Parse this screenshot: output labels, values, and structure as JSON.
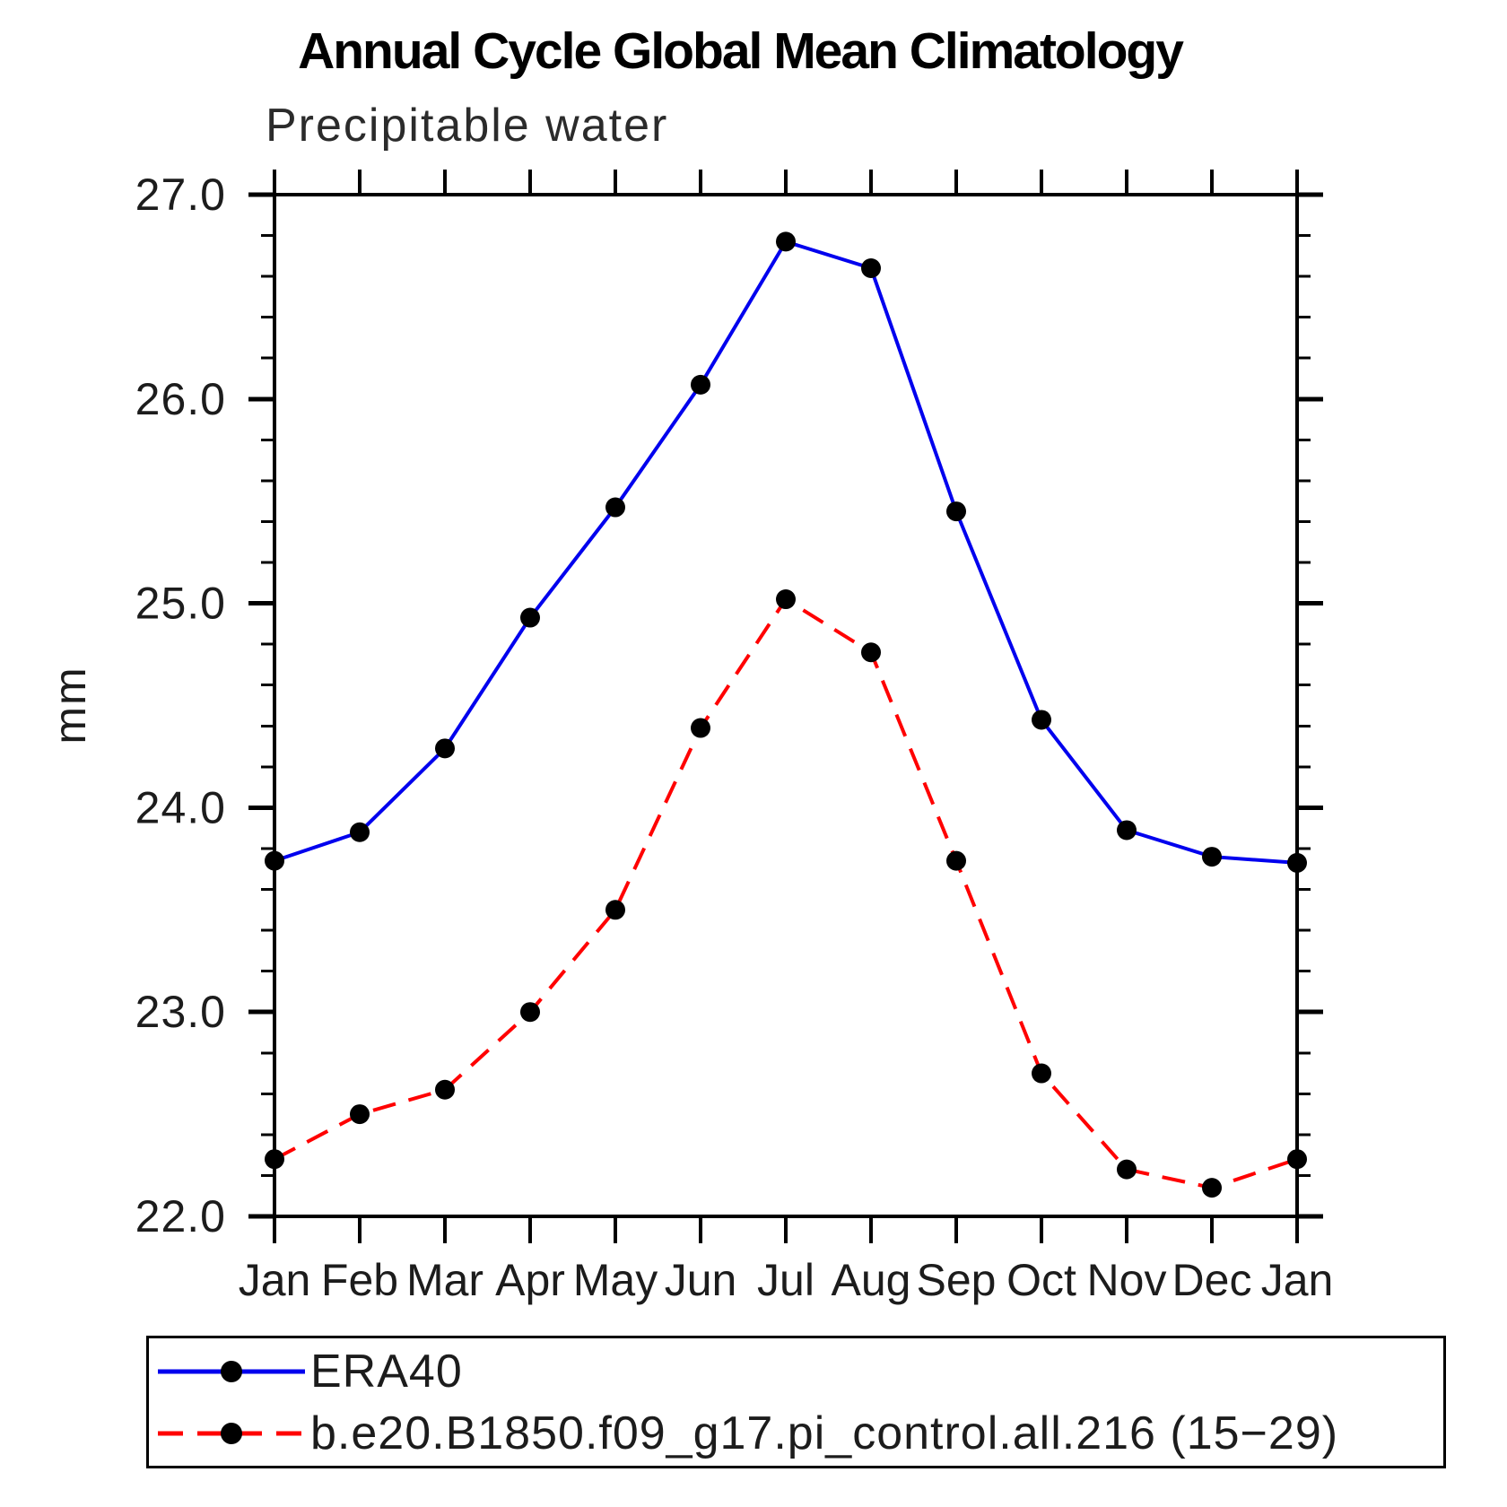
{
  "title": "Annual Cycle Global Mean Climatology",
  "subtitle": "Precipitable water",
  "chart_data": {
    "type": "line",
    "categories": [
      "Jan",
      "Feb",
      "Mar",
      "Apr",
      "May",
      "Jun",
      "Jul",
      "Aug",
      "Sep",
      "Oct",
      "Nov",
      "Dec",
      "Jan"
    ],
    "series": [
      {
        "name": "ERA40",
        "color": "#0000ee",
        "line_style": "solid",
        "marker_color": "#000000",
        "values": [
          23.74,
          23.88,
          24.29,
          24.93,
          25.47,
          26.07,
          26.77,
          26.64,
          25.45,
          24.43,
          23.89,
          23.76,
          23.73
        ]
      },
      {
        "name": "b.e20.B1850.f09_g17.pi_control.all.216 (15−29)",
        "color": "#ff0000",
        "line_style": "dashed",
        "marker_color": "#000000",
        "values": [
          22.28,
          22.5,
          22.62,
          23.0,
          23.5,
          24.39,
          25.02,
          24.76,
          23.74,
          22.7,
          22.23,
          22.14,
          22.28
        ]
      }
    ],
    "xlabel": "",
    "ylabel": "mm",
    "ylim": [
      22.0,
      27.0
    ],
    "yticks": [
      27.0,
      26.0,
      25.0,
      24.0,
      23.0,
      22.0
    ],
    "ytick_labels": [
      "27.0",
      "26.0",
      "25.0",
      "24.0",
      "23.0",
      "22.0"
    ],
    "minor_tick_step": 0.2,
    "grid": "off",
    "legend_position": "bottom"
  }
}
